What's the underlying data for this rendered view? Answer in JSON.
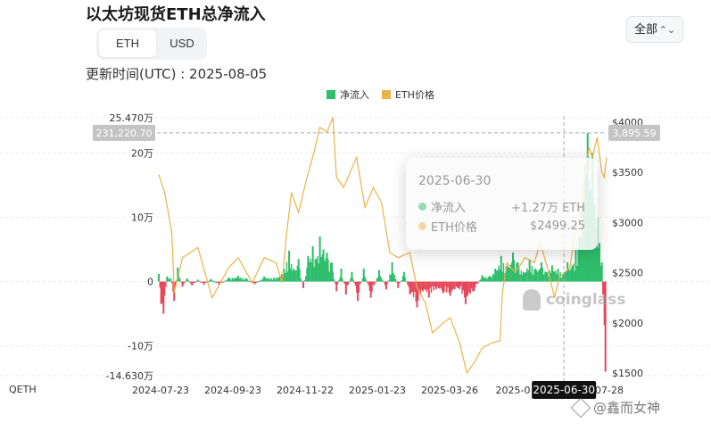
{
  "page": {
    "title": "以太坊现货ETH总净流入",
    "currency_toggle": {
      "options": [
        "ETH",
        "USD"
      ],
      "selected": "ETH"
    },
    "range_select": {
      "selected": "全部"
    },
    "updated_label": "更新时间(UTC) : 2025-08-05",
    "left_marker": "QETH",
    "watermark": "coinglass",
    "author": "@鑫而女神"
  },
  "tooltip": {
    "date": "2025-06-30",
    "rows": [
      {
        "label": "净流入",
        "value": "+1.27万 ETH",
        "color": "#2ebd6b"
      },
      {
        "label": "ETH价格",
        "value": "$2499.25",
        "color": "#e8b44a"
      }
    ]
  },
  "crosshair": {
    "left_value": "231,220.70",
    "right_value": "3,895.59",
    "x_label": "2025-06-30"
  },
  "colors": {
    "inflow": "#2ebd6b",
    "outflow": "#e5485b",
    "price": "#e8b44a"
  },
  "chart_data": {
    "type": "bar",
    "title": "以太坊现货ETH总净流入",
    "legend": [
      "净流入",
      "ETH价格"
    ],
    "x_ticks": [
      "2024-07-23",
      "2024-09-23",
      "2024-11-22",
      "2025-01-23",
      "2025-03-26",
      "2025-0",
      "07-28"
    ],
    "y_left_ticks": [
      {
        "label": "25.470万",
        "value": 254700
      },
      {
        "label": "20万",
        "value": 200000
      },
      {
        "label": "10万",
        "value": 100000
      },
      {
        "label": "0",
        "value": 0
      },
      {
        "label": "-10万",
        "value": -100000
      },
      {
        "label": "-14.630万",
        "value": -146300
      }
    ],
    "y_right_ticks": [
      {
        "label": "$4000",
        "value": 4000
      },
      {
        "label": "$3500",
        "value": 3500
      },
      {
        "label": "$3000",
        "value": 3000
      },
      {
        "label": "$2500",
        "value": 2500
      },
      {
        "label": "$2000",
        "value": 2000
      },
      {
        "label": "$1500",
        "value": 1500
      }
    ],
    "ylim_left": [
      -146300,
      254700
    ],
    "ylim_right": [
      1500,
      4000
    ],
    "date_start": "2024-07-23",
    "date_end": "2025-08-05",
    "flow_series": {
      "name": "净流入",
      "points": [
        [
          "2024-07-23",
          12000
        ],
        [
          "2024-07-25",
          -35000
        ],
        [
          "2024-07-27",
          -50000
        ],
        [
          "2024-07-30",
          8000
        ],
        [
          "2024-08-02",
          5000
        ],
        [
          "2024-08-05",
          -30000
        ],
        [
          "2024-08-08",
          22000
        ],
        [
          "2024-08-12",
          -8000
        ],
        [
          "2024-08-16",
          5000
        ],
        [
          "2024-08-20",
          -6000
        ],
        [
          "2024-08-25",
          3000
        ],
        [
          "2024-08-30",
          -5000
        ],
        [
          "2024-09-05",
          4000
        ],
        [
          "2024-09-12",
          -5000
        ],
        [
          "2024-09-20",
          6000
        ],
        [
          "2024-09-28",
          9000
        ],
        [
          "2024-10-05",
          5000
        ],
        [
          "2024-10-12",
          -4000
        ],
        [
          "2024-10-20",
          8000
        ],
        [
          "2024-10-28",
          6000
        ],
        [
          "2024-11-04",
          12000
        ],
        [
          "2024-11-10",
          48000
        ],
        [
          "2024-11-14",
          20000
        ],
        [
          "2024-11-18",
          35000
        ],
        [
          "2024-11-22",
          -10000
        ],
        [
          "2024-11-26",
          40000
        ],
        [
          "2024-11-30",
          55000
        ],
        [
          "2024-12-03",
          35000
        ],
        [
          "2024-12-06",
          70000
        ],
        [
          "2024-12-09",
          50000
        ],
        [
          "2024-12-12",
          45000
        ],
        [
          "2024-12-16",
          30000
        ],
        [
          "2024-12-20",
          -15000
        ],
        [
          "2024-12-24",
          20000
        ],
        [
          "2024-12-28",
          -20000
        ],
        [
          "2025-01-02",
          15000
        ],
        [
          "2025-01-07",
          -30000
        ],
        [
          "2025-01-12",
          20000
        ],
        [
          "2025-01-18",
          -25000
        ],
        [
          "2025-01-25",
          18000
        ],
        [
          "2025-01-31",
          -12000
        ],
        [
          "2025-02-05",
          30000
        ],
        [
          "2025-02-10",
          -10000
        ],
        [
          "2025-02-15",
          15000
        ],
        [
          "2025-02-20",
          -20000
        ],
        [
          "2025-02-26",
          -40000
        ],
        [
          "2025-03-03",
          -15000
        ],
        [
          "2025-03-08",
          -25000
        ],
        [
          "2025-03-14",
          -12000
        ],
        [
          "2025-03-20",
          -18000
        ],
        [
          "2025-03-26",
          -22000
        ],
        [
          "2025-04-02",
          -10000
        ],
        [
          "2025-04-08",
          -35000
        ],
        [
          "2025-04-15",
          -15000
        ],
        [
          "2025-04-22",
          10000
        ],
        [
          "2025-04-28",
          8000
        ],
        [
          "2025-05-03",
          20000
        ],
        [
          "2025-05-08",
          40000
        ],
        [
          "2025-05-13",
          25000
        ],
        [
          "2025-05-18",
          45000
        ],
        [
          "2025-05-22",
          30000
        ],
        [
          "2025-05-27",
          15000
        ],
        [
          "2025-06-01",
          35000
        ],
        [
          "2025-06-06",
          20000
        ],
        [
          "2025-06-11",
          30000
        ],
        [
          "2025-06-15",
          15000
        ],
        [
          "2025-06-20",
          25000
        ],
        [
          "2025-06-25",
          20000
        ],
        [
          "2025-06-30",
          12700
        ],
        [
          "2025-07-03",
          30000
        ],
        [
          "2025-07-07",
          25000
        ],
        [
          "2025-07-10",
          50000
        ],
        [
          "2025-07-13",
          70000
        ],
        [
          "2025-07-16",
          120000
        ],
        [
          "2025-07-18",
          180000
        ],
        [
          "2025-07-20",
          231220
        ],
        [
          "2025-07-22",
          140000
        ],
        [
          "2025-07-24",
          200000
        ],
        [
          "2025-07-26",
          120000
        ],
        [
          "2025-07-28",
          100000
        ],
        [
          "2025-07-30",
          60000
        ],
        [
          "2025-08-01",
          30000
        ],
        [
          "2025-08-02",
          -20000
        ],
        [
          "2025-08-04",
          -140000
        ]
      ]
    },
    "price_series": {
      "name": "ETH价格",
      "points": [
        [
          "2024-07-23",
          3480
        ],
        [
          "2024-07-28",
          3300
        ],
        [
          "2024-08-03",
          2900
        ],
        [
          "2024-08-05",
          2300
        ],
        [
          "2024-08-12",
          2650
        ],
        [
          "2024-08-25",
          2750
        ],
        [
          "2024-09-06",
          2250
        ],
        [
          "2024-09-20",
          2550
        ],
        [
          "2024-09-28",
          2650
        ],
        [
          "2024-10-10",
          2400
        ],
        [
          "2024-10-20",
          2650
        ],
        [
          "2024-10-30",
          2600
        ],
        [
          "2024-11-04",
          2400
        ],
        [
          "2024-11-08",
          2900
        ],
        [
          "2024-11-12",
          3300
        ],
        [
          "2024-11-18",
          3100
        ],
        [
          "2024-11-24",
          3400
        ],
        [
          "2024-12-01",
          3700
        ],
        [
          "2024-12-06",
          3950
        ],
        [
          "2024-12-12",
          3900
        ],
        [
          "2024-12-17",
          4050
        ],
        [
          "2024-12-20",
          3450
        ],
        [
          "2024-12-26",
          3350
        ],
        [
          "2025-01-06",
          3650
        ],
        [
          "2025-01-13",
          3150
        ],
        [
          "2025-01-20",
          3350
        ],
        [
          "2025-01-27",
          3200
        ],
        [
          "2025-02-03",
          2700
        ],
        [
          "2025-02-10",
          2650
        ],
        [
          "2025-02-20",
          2700
        ],
        [
          "2025-02-26",
          2350
        ],
        [
          "2025-03-05",
          2200
        ],
        [
          "2025-03-11",
          1900
        ],
        [
          "2025-03-20",
          2000
        ],
        [
          "2025-03-26",
          2050
        ],
        [
          "2025-04-03",
          1800
        ],
        [
          "2025-04-09",
          1500
        ],
        [
          "2025-04-15",
          1600
        ],
        [
          "2025-04-22",
          1750
        ],
        [
          "2025-04-30",
          1800
        ],
        [
          "2025-05-07",
          1820
        ],
        [
          "2025-05-09",
          2300
        ],
        [
          "2025-05-13",
          2600
        ],
        [
          "2025-05-20",
          2500
        ],
        [
          "2025-05-28",
          2650
        ],
        [
          "2025-06-05",
          2600
        ],
        [
          "2025-06-10",
          2800
        ],
        [
          "2025-06-16",
          2550
        ],
        [
          "2025-06-22",
          2250
        ],
        [
          "2025-06-26",
          2450
        ],
        [
          "2025-06-30",
          2499
        ],
        [
          "2025-07-05",
          2550
        ],
        [
          "2025-07-10",
          2950
        ],
        [
          "2025-07-14",
          3050
        ],
        [
          "2025-07-18",
          3500
        ],
        [
          "2025-07-21",
          3750
        ],
        [
          "2025-07-24",
          3650
        ],
        [
          "2025-07-28",
          3850
        ],
        [
          "2025-08-01",
          3500
        ],
        [
          "2025-08-03",
          3450
        ],
        [
          "2025-08-05",
          3650
        ]
      ]
    },
    "grid": true,
    "legend_position": "top-center"
  }
}
